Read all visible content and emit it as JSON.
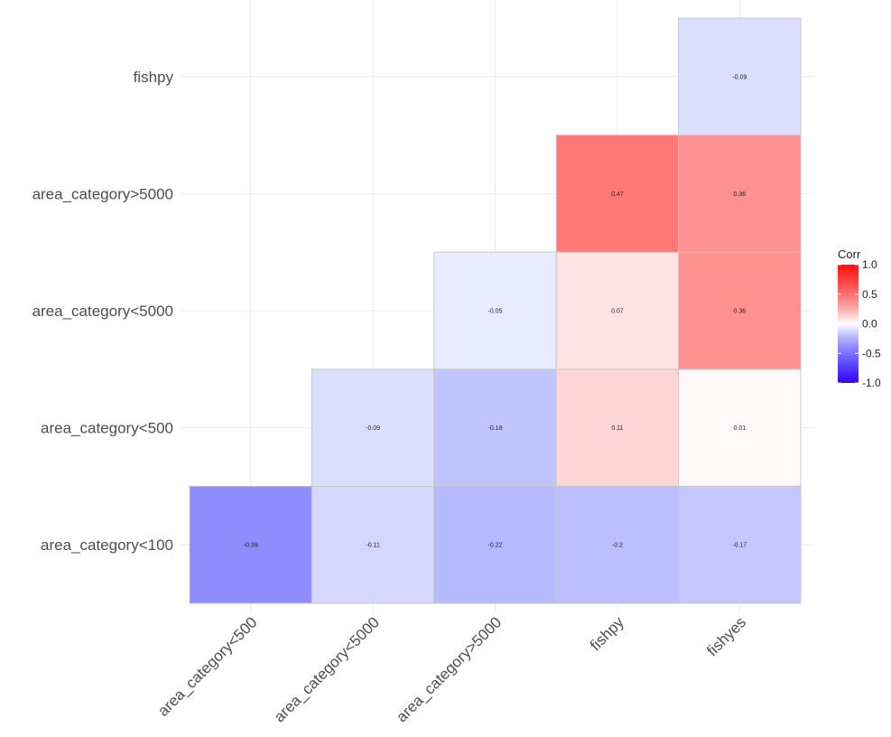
{
  "chart_data": {
    "type": "heatmap",
    "title": "",
    "xlabel": "",
    "ylabel": "",
    "x_categories": [
      "area_category<500",
      "area_category<5000",
      "area_category>5000",
      "fishpy",
      "fishyes"
    ],
    "y_categories": [
      "area_category<100",
      "area_category<500",
      "area_category<5000",
      "area_category>5000",
      "fishpy"
    ],
    "cells": [
      {
        "x": "area_category<500",
        "y": "area_category<100",
        "value": -0.39,
        "label": "-0.39"
      },
      {
        "x": "area_category<5000",
        "y": "area_category<100",
        "value": -0.11,
        "label": "-0.11"
      },
      {
        "x": "area_category>5000",
        "y": "area_category<100",
        "value": -0.22,
        "label": "-0.22"
      },
      {
        "x": "fishpy",
        "y": "area_category<100",
        "value": -0.2,
        "label": "-0.2"
      },
      {
        "x": "fishyes",
        "y": "area_category<100",
        "value": -0.17,
        "label": "-0.17"
      },
      {
        "x": "area_category<5000",
        "y": "area_category<500",
        "value": -0.09,
        "label": "-0.09"
      },
      {
        "x": "area_category>5000",
        "y": "area_category<500",
        "value": -0.18,
        "label": "-0.18"
      },
      {
        "x": "fishpy",
        "y": "area_category<500",
        "value": 0.11,
        "label": "0.11"
      },
      {
        "x": "fishyes",
        "y": "area_category<500",
        "value": 0.01,
        "label": "0.01"
      },
      {
        "x": "area_category>5000",
        "y": "area_category<5000",
        "value": -0.05,
        "label": "-0.05"
      },
      {
        "x": "fishpy",
        "y": "area_category<5000",
        "value": 0.07,
        "label": "0.07"
      },
      {
        "x": "fishyes",
        "y": "area_category<5000",
        "value": 0.36,
        "label": "0.36"
      },
      {
        "x": "fishpy",
        "y": "area_category>5000",
        "value": 0.47,
        "label": "0.47"
      },
      {
        "x": "fishyes",
        "y": "area_category>5000",
        "value": 0.36,
        "label": "0.36"
      },
      {
        "x": "fishyes",
        "y": "fishpy",
        "value": -0.09,
        "label": "-0.09"
      }
    ],
    "legend": {
      "title": "Corr",
      "placement": "right",
      "ticks": [
        "1.0",
        "0.5",
        "0.0",
        "-0.5",
        "-1.0"
      ],
      "tick_values": [
        1.0,
        0.5,
        0.0,
        -0.5,
        -1.0
      ],
      "range": [
        -1.0,
        1.0
      ]
    },
    "colors": {
      "low": "#0000ff",
      "mid": "#ffffff",
      "high": "#ff0000"
    },
    "grid": true
  }
}
